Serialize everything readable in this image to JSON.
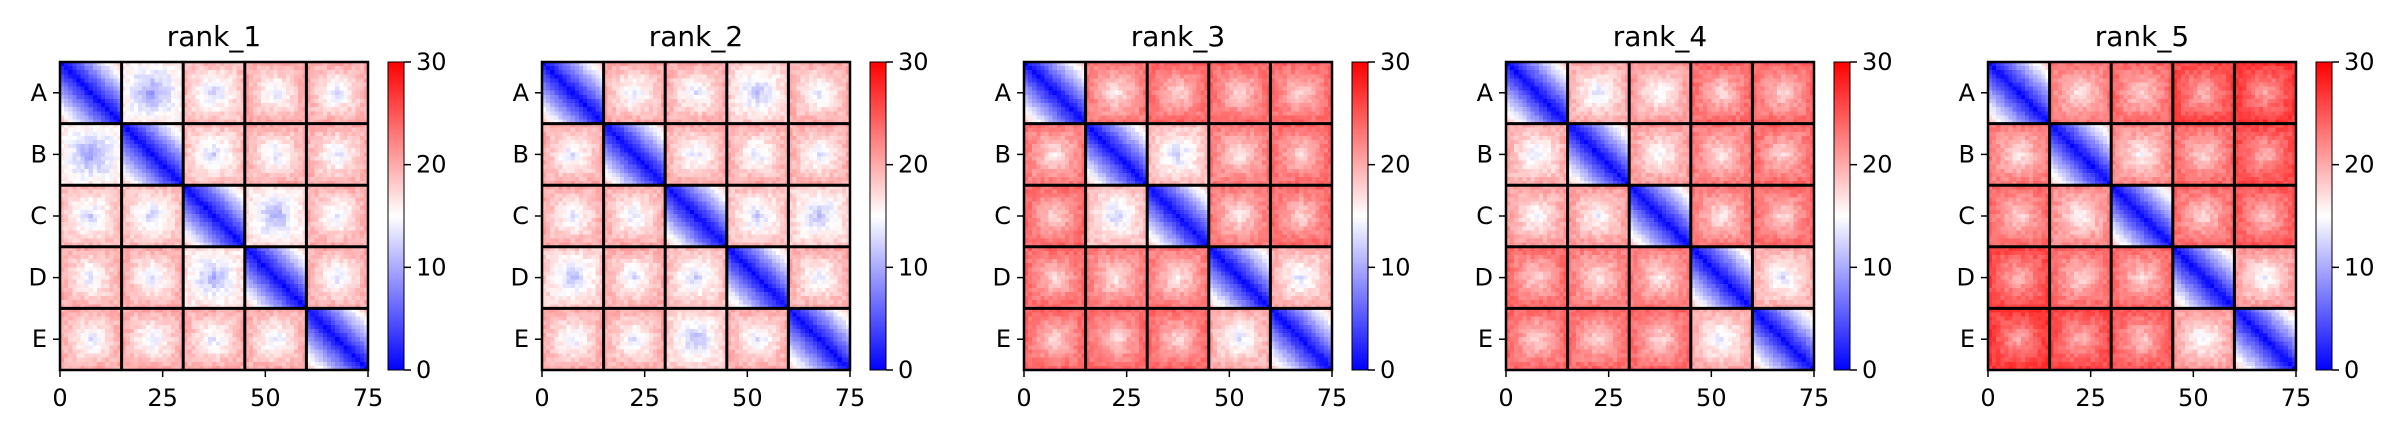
{
  "chart_data": [
    {
      "type": "heatmap",
      "title": "rank_1",
      "x_ticks": [
        0,
        25,
        50,
        75
      ],
      "xlim": [
        0,
        75
      ],
      "y_tick_labels": [
        "A",
        "B",
        "C",
        "D",
        "E"
      ],
      "block_size": 15,
      "n": 75,
      "colorbar": {
        "ticks": [
          0,
          10,
          20,
          30
        ],
        "range": [
          0,
          30
        ]
      },
      "block_means": [
        [
          0,
          13,
          16,
          17,
          17
        ],
        [
          13,
          0,
          16,
          17,
          17
        ],
        [
          16,
          16,
          0,
          14,
          17
        ],
        [
          17,
          17,
          14,
          0,
          17
        ],
        [
          17,
          17,
          17,
          17,
          0
        ]
      ]
    },
    {
      "type": "heatmap",
      "title": "rank_2",
      "x_ticks": [
        0,
        25,
        50,
        75
      ],
      "xlim": [
        0,
        75
      ],
      "y_tick_labels": [
        "A",
        "B",
        "C",
        "D",
        "E"
      ],
      "block_size": 15,
      "n": 75,
      "colorbar": {
        "ticks": [
          0,
          10,
          20,
          30
        ],
        "range": [
          0,
          30
        ]
      },
      "block_means": [
        [
          0,
          17,
          17,
          15,
          17
        ],
        [
          17,
          0,
          17,
          17,
          17
        ],
        [
          17,
          17,
          0,
          16,
          15
        ],
        [
          15,
          17,
          16,
          0,
          17
        ],
        [
          17,
          17,
          15,
          17,
          0
        ]
      ]
    },
    {
      "type": "heatmap",
      "title": "rank_3",
      "x_ticks": [
        0,
        25,
        50,
        75
      ],
      "xlim": [
        0,
        75
      ],
      "y_tick_labels": [
        "A",
        "B",
        "C",
        "D",
        "E"
      ],
      "block_size": 15,
      "n": 75,
      "colorbar": {
        "ticks": [
          0,
          10,
          20,
          30
        ],
        "range": [
          0,
          30
        ]
      },
      "block_means": [
        [
          0,
          20,
          21,
          21,
          21
        ],
        [
          20,
          0,
          16,
          20,
          21
        ],
        [
          21,
          16,
          0,
          20,
          21
        ],
        [
          21,
          20,
          20,
          0,
          17
        ],
        [
          21,
          21,
          21,
          17,
          0
        ]
      ]
    },
    {
      "type": "heatmap",
      "title": "rank_4",
      "x_ticks": [
        0,
        25,
        50,
        75
      ],
      "xlim": [
        0,
        75
      ],
      "y_tick_labels": [
        "A",
        "B",
        "C",
        "D",
        "E"
      ],
      "block_size": 15,
      "n": 75,
      "colorbar": {
        "ticks": [
          0,
          10,
          20,
          30
        ],
        "range": [
          0,
          30
        ]
      },
      "block_means": [
        [
          0,
          17,
          18,
          21,
          21
        ],
        [
          17,
          0,
          18,
          20,
          21
        ],
        [
          18,
          18,
          0,
          20,
          21
        ],
        [
          21,
          20,
          20,
          0,
          17
        ],
        [
          21,
          21,
          21,
          17,
          0
        ]
      ]
    },
    {
      "type": "heatmap",
      "title": "rank_5",
      "x_ticks": [
        0,
        25,
        50,
        75
      ],
      "xlim": [
        0,
        75
      ],
      "y_tick_labels": [
        "A",
        "B",
        "C",
        "D",
        "E"
      ],
      "block_size": 15,
      "n": 75,
      "colorbar": {
        "ticks": [
          0,
          10,
          20,
          30
        ],
        "range": [
          0,
          30
        ]
      },
      "block_means": [
        [
          0,
          20,
          21,
          23,
          24
        ],
        [
          20,
          0,
          19,
          21,
          23
        ],
        [
          21,
          19,
          0,
          21,
          22
        ],
        [
          23,
          21,
          21,
          0,
          18
        ],
        [
          24,
          23,
          22,
          18,
          0
        ]
      ]
    }
  ],
  "colors": {
    "cmap_low": "#0000ff",
    "cmap_mid": "#ffffff",
    "cmap_high": "#ff0000",
    "block_border": "#000000"
  }
}
